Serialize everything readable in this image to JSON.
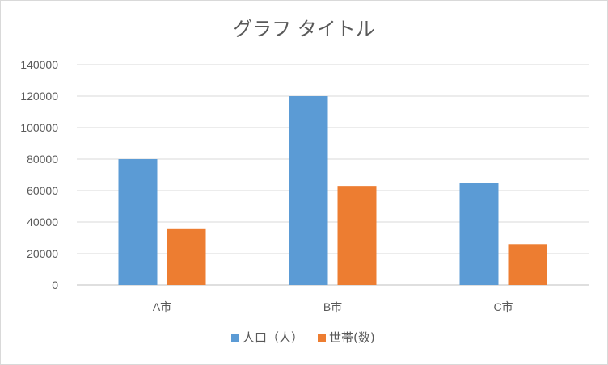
{
  "chart_data": {
    "type": "bar",
    "title": "グラフ タイトル",
    "categories": [
      "A市",
      "B市",
      "C市"
    ],
    "series": [
      {
        "name": "人口（人）",
        "values": [
          80000,
          120000,
          65000
        ],
        "color": "#5b9bd5"
      },
      {
        "name": "世帯(数)",
        "values": [
          36000,
          63000,
          26000
        ],
        "color": "#ed7d31"
      }
    ],
    "ylim": [
      0,
      140000
    ],
    "yticks": [
      0,
      20000,
      40000,
      60000,
      80000,
      100000,
      120000,
      140000
    ],
    "grid": true,
    "legend_position": "bottom"
  }
}
